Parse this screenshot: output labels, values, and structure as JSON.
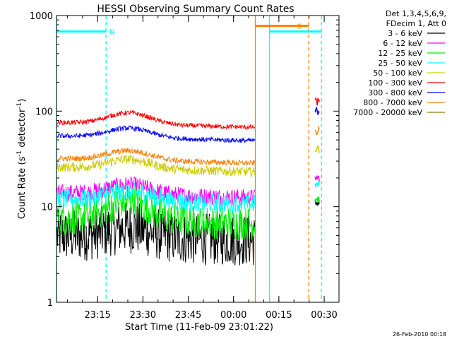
{
  "chart_data": {
    "type": "line",
    "title": "HESSI Observing Summary Count Rates",
    "xlabel": "Start Time (11-Feb-09 23:01:22)",
    "ylabel_main": "Count Rate (s",
    "ylabel_sup1": "-1",
    "ylabel_mid": " detector",
    "ylabel_sup2": "-1",
    "ylabel_end": ")",
    "footer": "26-Feb-2010 00:18",
    "y_scale": "log",
    "ylim": [
      1,
      1000
    ],
    "xlim_minutes": [
      0,
      93.5
    ],
    "x_ticks": [
      {
        "min": 13.6,
        "label": "23:15"
      },
      {
        "min": 28.6,
        "label": "23:30"
      },
      {
        "min": 43.6,
        "label": "23:45"
      },
      {
        "min": 58.6,
        "label": "00:00"
      },
      {
        "min": 73.6,
        "label": "00:15"
      },
      {
        "min": 88.6,
        "label": "00:30"
      }
    ],
    "y_ticks": [
      {
        "value": 1,
        "label": "1"
      },
      {
        "value": 10,
        "label": "10"
      },
      {
        "value": 100,
        "label": "100"
      },
      {
        "value": 1000,
        "label": "1000"
      }
    ],
    "legend": {
      "header1": "Det 1,3,4,5,6,9,",
      "header2": "FDecim 1, Att 0",
      "placement": "right"
    },
    "series": [
      {
        "name": "3 - 6 keV",
        "color": "#000000",
        "level": 5.0,
        "noise": 0.55,
        "bump": 0.1
      },
      {
        "name": "6 - 12 keV",
        "color": "#ff00ff",
        "level": 14.0,
        "noise": 0.18,
        "bump": 0.1
      },
      {
        "name": "12 - 25 keV",
        "color": "#00ee00",
        "level": 7.5,
        "noise": 0.35,
        "bump": 0.2
      },
      {
        "name": "25 - 50 keV",
        "color": "#00ffff",
        "level": 12.0,
        "noise": 0.2,
        "bump": 0.1
      },
      {
        "name": "50 - 100 keV",
        "color": "#cccc00",
        "level": 26.0,
        "noise": 0.1,
        "bump": 0.1
      },
      {
        "name": "100 - 300 keV",
        "color": "#ff0000",
        "level": 76.0,
        "noise": 0.05,
        "bump": 0.12
      },
      {
        "name": "300 - 800 keV",
        "color": "#0000ff",
        "level": 55.0,
        "noise": 0.05,
        "bump": 0.1
      },
      {
        "name": "800 - 7000 keV",
        "color": "#ff8000",
        "level": 32.0,
        "noise": 0.06,
        "bump": 0.1
      },
      {
        "name": "7000 - 20000 keV",
        "color": "#808000",
        "level": 0,
        "noise": 0,
        "bump": 0
      }
    ],
    "flags": [
      {
        "label": "N",
        "color": "#00ffff",
        "x_start": 0,
        "x_end": 16.4,
        "value": 680
      },
      {
        "label": "S",
        "color": "#ff8000",
        "x_start": 65.8,
        "x_end": 83.5,
        "value": 780
      },
      {
        "label": "",
        "color": "#00ffff",
        "x_start": 70.5,
        "x_end": 87.7,
        "value": 680
      }
    ],
    "vlines": [
      {
        "x": 0,
        "color": "#00ffff",
        "style": "solid"
      },
      {
        "x": 16.4,
        "color": "#00ffff",
        "style": "dashed"
      },
      {
        "x": 65.8,
        "color": "#ff8000",
        "style": "solid"
      },
      {
        "x": 70.5,
        "color": "#00ffff",
        "style": "solid"
      },
      {
        "x": 83.5,
        "color": "#ff8000",
        "style": "dashed"
      },
      {
        "x": 87.7,
        "color": "#00ffff",
        "style": "dashed"
      }
    ],
    "segments": [
      {
        "x_start": 0.2,
        "x_end": 65.6
      },
      {
        "x_start": 85.6,
        "x_end": 87.0
      }
    ],
    "late_levels": [
      {
        "series": "100 - 300 keV",
        "value": 125
      },
      {
        "series": "300 - 800 keV",
        "value": 100
      },
      {
        "series": "800 - 7000 keV",
        "value": 62
      },
      {
        "series": "50 - 100 keV",
        "value": 40
      },
      {
        "series": "6 - 12 keV",
        "value": 20
      },
      {
        "series": "25 - 50 keV",
        "value": 17
      },
      {
        "series": "12 - 25 keV",
        "value": 12
      },
      {
        "series": "3 - 6 keV",
        "value": 11
      }
    ]
  }
}
